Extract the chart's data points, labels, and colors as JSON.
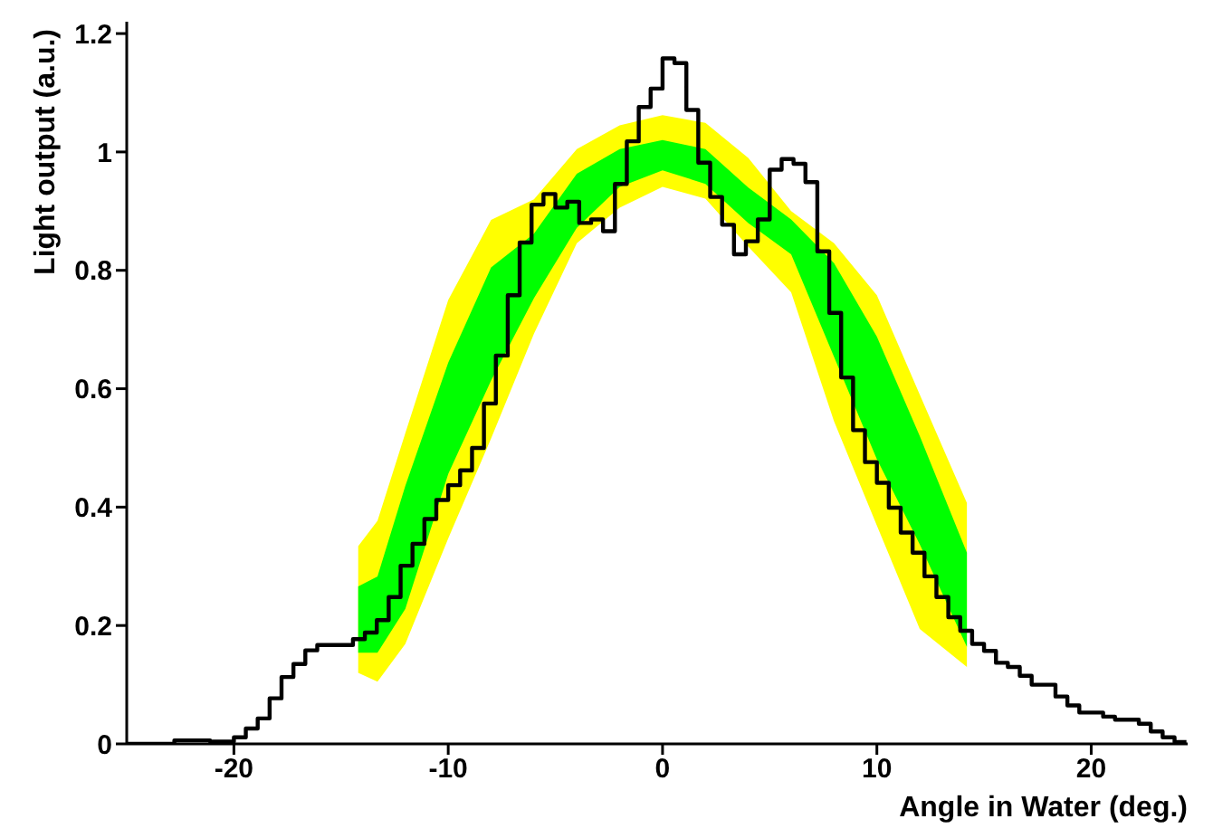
{
  "chart_data": {
    "type": "step",
    "xlabel": "Angle in Water (deg.)",
    "ylabel": "Light output (a.u.)",
    "color": "#000000",
    "x": [
      -25,
      -24.444,
      -23.889,
      -23.333,
      -22.778,
      -22.222,
      -21.667,
      -21.111,
      -20.556,
      -20,
      -19.444,
      -18.889,
      -18.333,
      -17.778,
      -17.222,
      -16.667,
      -16.111,
      -15.556,
      -15,
      -14.444,
      -13.889,
      -13.333,
      -12.778,
      -12.222,
      -11.667,
      -11.111,
      -10.556,
      -10,
      -9.444,
      -8.889,
      -8.333,
      -7.778,
      -7.222,
      -6.667,
      -6.111,
      -5.556,
      -5,
      -4.444,
      -3.889,
      -3.333,
      -2.778,
      -2.222,
      -1.667,
      -1.111,
      -0.556,
      0,
      0.556,
      1.111,
      1.667,
      2.222,
      2.778,
      3.333,
      3.889,
      4.444,
      5,
      5.556,
      6.111,
      6.667,
      7.222,
      7.778,
      8.333,
      8.889,
      9.444,
      10,
      10.556,
      11.111,
      11.667,
      12.222,
      12.778,
      13.333,
      13.889,
      14.444,
      15,
      15.556,
      16.111,
      16.667,
      17.222,
      17.778,
      18.333,
      18.889,
      19.444,
      20,
      20.556,
      21.111,
      21.667,
      22.222,
      22.778,
      23.333,
      23.889,
      24.444
    ],
    "values": [
      0,
      0,
      0,
      0,
      0.006,
      0.006,
      0.006,
      0.004,
      0.004,
      0.011,
      0.026,
      0.043,
      0.077,
      0.113,
      0.135,
      0.158,
      0.167,
      0.167,
      0.167,
      0.177,
      0.188,
      0.209,
      0.248,
      0.301,
      0.338,
      0.38,
      0.412,
      0.437,
      0.462,
      0.5,
      0.575,
      0.656,
      0.758,
      0.847,
      0.911,
      0.929,
      0.906,
      0.916,
      0.88,
      0.886,
      0.866,
      0.946,
      1.018,
      1.076,
      1.107,
      1.158,
      1.15,
      1.071,
      0.982,
      0.924,
      0.877,
      0.827,
      0.849,
      0.886,
      0.97,
      0.988,
      0.98,
      0.949,
      0.832,
      0.728,
      0.619,
      0.53,
      0.476,
      0.441,
      0.399,
      0.357,
      0.323,
      0.283,
      0.248,
      0.214,
      0.191,
      0.169,
      0.157,
      0.137,
      0.13,
      0.115,
      0.1,
      0.1,
      0.08,
      0.065,
      0.053,
      0.053,
      0.046,
      0.041,
      0.041,
      0.034,
      0.021,
      0.011,
      0.003,
      0.003
    ],
    "series": [
      {
        "type": "area",
        "color": "#ffff00",
        "values": [
          null,
          null,
          null,
          null,
          null,
          null,
          null,
          null,
          null,
          null,
          null,
          null,
          null,
          null,
          null,
          null
        ],
        "x": [
          -14.2,
          -13.3,
          -12,
          -10,
          -8,
          -6,
          -4,
          -2,
          0,
          2,
          4,
          6,
          8,
          10,
          12,
          14.2
        ],
        "lower": [
          0.12,
          0.105,
          0.169,
          0.347,
          0.516,
          0.693,
          0.846,
          0.906,
          0.941,
          0.921,
          0.84,
          0.763,
          0.545,
          0.369,
          0.194,
          0.13
        ],
        "upper": [
          0.334,
          0.377,
          0.525,
          0.75,
          0.885,
          0.92,
          1.005,
          1.045,
          1.062,
          1.049,
          0.99,
          0.9,
          0.846,
          0.758,
          0.59,
          0.407
        ]
      },
      {
        "type": "area",
        "color": "#00ff00",
        "values": [
          null,
          null,
          null,
          null,
          null,
          null,
          null,
          null,
          null,
          null,
          null,
          null,
          null,
          null,
          null,
          null
        ],
        "x": [
          -14.2,
          -13.3,
          -12,
          -10,
          -8,
          -6,
          -4,
          -2,
          0,
          2,
          4,
          6,
          8,
          10,
          12,
          14.2
        ],
        "lower": [
          0.154,
          0.154,
          0.228,
          0.456,
          0.614,
          0.753,
          0.872,
          0.941,
          0.969,
          0.946,
          0.88,
          0.827,
          0.654,
          0.481,
          0.337,
          0.164
        ],
        "upper": [
          0.266,
          0.283,
          0.436,
          0.644,
          0.805,
          0.862,
          0.963,
          1.005,
          1.02,
          1.005,
          0.94,
          0.886,
          0.812,
          0.688,
          0.52,
          0.323
        ]
      }
    ],
    "xlim": [
      -25,
      24.5
    ],
    "xticks": [
      -20,
      -10,
      0,
      10,
      20
    ],
    "ylim": [
      0,
      1.22
    ],
    "yticks": [
      0,
      0.2,
      0.4,
      0.6,
      0.8,
      1,
      1.2
    ],
    "grid": false
  }
}
